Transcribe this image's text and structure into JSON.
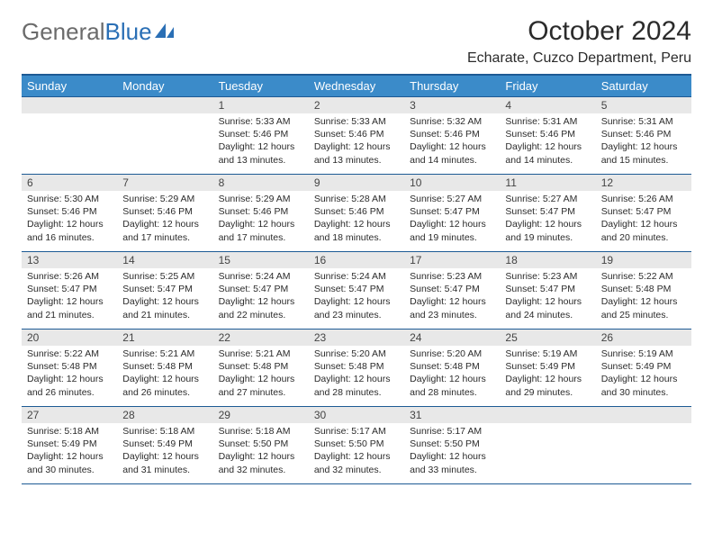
{
  "logo": {
    "part1": "General",
    "part2": "Blue"
  },
  "header": {
    "month_title": "October 2024",
    "location": "Echarate, Cuzco Department, Peru"
  },
  "colors": {
    "header_bg": "#3b8bc9",
    "header_border": "#1d5a94",
    "daynum_bg": "#e8e8e8",
    "text": "#2b2b2b",
    "logo_gray": "#6b6b6b",
    "logo_blue": "#2a6fb5"
  },
  "weekdays": [
    "Sunday",
    "Monday",
    "Tuesday",
    "Wednesday",
    "Thursday",
    "Friday",
    "Saturday"
  ],
  "weeks": [
    [
      null,
      null,
      {
        "n": "1",
        "sr": "Sunrise: 5:33 AM",
        "ss": "Sunset: 5:46 PM",
        "dl": "Daylight: 12 hours and 13 minutes."
      },
      {
        "n": "2",
        "sr": "Sunrise: 5:33 AM",
        "ss": "Sunset: 5:46 PM",
        "dl": "Daylight: 12 hours and 13 minutes."
      },
      {
        "n": "3",
        "sr": "Sunrise: 5:32 AM",
        "ss": "Sunset: 5:46 PM",
        "dl": "Daylight: 12 hours and 14 minutes."
      },
      {
        "n": "4",
        "sr": "Sunrise: 5:31 AM",
        "ss": "Sunset: 5:46 PM",
        "dl": "Daylight: 12 hours and 14 minutes."
      },
      {
        "n": "5",
        "sr": "Sunrise: 5:31 AM",
        "ss": "Sunset: 5:46 PM",
        "dl": "Daylight: 12 hours and 15 minutes."
      }
    ],
    [
      {
        "n": "6",
        "sr": "Sunrise: 5:30 AM",
        "ss": "Sunset: 5:46 PM",
        "dl": "Daylight: 12 hours and 16 minutes."
      },
      {
        "n": "7",
        "sr": "Sunrise: 5:29 AM",
        "ss": "Sunset: 5:46 PM",
        "dl": "Daylight: 12 hours and 17 minutes."
      },
      {
        "n": "8",
        "sr": "Sunrise: 5:29 AM",
        "ss": "Sunset: 5:46 PM",
        "dl": "Daylight: 12 hours and 17 minutes."
      },
      {
        "n": "9",
        "sr": "Sunrise: 5:28 AM",
        "ss": "Sunset: 5:46 PM",
        "dl": "Daylight: 12 hours and 18 minutes."
      },
      {
        "n": "10",
        "sr": "Sunrise: 5:27 AM",
        "ss": "Sunset: 5:47 PM",
        "dl": "Daylight: 12 hours and 19 minutes."
      },
      {
        "n": "11",
        "sr": "Sunrise: 5:27 AM",
        "ss": "Sunset: 5:47 PM",
        "dl": "Daylight: 12 hours and 19 minutes."
      },
      {
        "n": "12",
        "sr": "Sunrise: 5:26 AM",
        "ss": "Sunset: 5:47 PM",
        "dl": "Daylight: 12 hours and 20 minutes."
      }
    ],
    [
      {
        "n": "13",
        "sr": "Sunrise: 5:26 AM",
        "ss": "Sunset: 5:47 PM",
        "dl": "Daylight: 12 hours and 21 minutes."
      },
      {
        "n": "14",
        "sr": "Sunrise: 5:25 AM",
        "ss": "Sunset: 5:47 PM",
        "dl": "Daylight: 12 hours and 21 minutes."
      },
      {
        "n": "15",
        "sr": "Sunrise: 5:24 AM",
        "ss": "Sunset: 5:47 PM",
        "dl": "Daylight: 12 hours and 22 minutes."
      },
      {
        "n": "16",
        "sr": "Sunrise: 5:24 AM",
        "ss": "Sunset: 5:47 PM",
        "dl": "Daylight: 12 hours and 23 minutes."
      },
      {
        "n": "17",
        "sr": "Sunrise: 5:23 AM",
        "ss": "Sunset: 5:47 PM",
        "dl": "Daylight: 12 hours and 23 minutes."
      },
      {
        "n": "18",
        "sr": "Sunrise: 5:23 AM",
        "ss": "Sunset: 5:47 PM",
        "dl": "Daylight: 12 hours and 24 minutes."
      },
      {
        "n": "19",
        "sr": "Sunrise: 5:22 AM",
        "ss": "Sunset: 5:48 PM",
        "dl": "Daylight: 12 hours and 25 minutes."
      }
    ],
    [
      {
        "n": "20",
        "sr": "Sunrise: 5:22 AM",
        "ss": "Sunset: 5:48 PM",
        "dl": "Daylight: 12 hours and 26 minutes."
      },
      {
        "n": "21",
        "sr": "Sunrise: 5:21 AM",
        "ss": "Sunset: 5:48 PM",
        "dl": "Daylight: 12 hours and 26 minutes."
      },
      {
        "n": "22",
        "sr": "Sunrise: 5:21 AM",
        "ss": "Sunset: 5:48 PM",
        "dl": "Daylight: 12 hours and 27 minutes."
      },
      {
        "n": "23",
        "sr": "Sunrise: 5:20 AM",
        "ss": "Sunset: 5:48 PM",
        "dl": "Daylight: 12 hours and 28 minutes."
      },
      {
        "n": "24",
        "sr": "Sunrise: 5:20 AM",
        "ss": "Sunset: 5:48 PM",
        "dl": "Daylight: 12 hours and 28 minutes."
      },
      {
        "n": "25",
        "sr": "Sunrise: 5:19 AM",
        "ss": "Sunset: 5:49 PM",
        "dl": "Daylight: 12 hours and 29 minutes."
      },
      {
        "n": "26",
        "sr": "Sunrise: 5:19 AM",
        "ss": "Sunset: 5:49 PM",
        "dl": "Daylight: 12 hours and 30 minutes."
      }
    ],
    [
      {
        "n": "27",
        "sr": "Sunrise: 5:18 AM",
        "ss": "Sunset: 5:49 PM",
        "dl": "Daylight: 12 hours and 30 minutes."
      },
      {
        "n": "28",
        "sr": "Sunrise: 5:18 AM",
        "ss": "Sunset: 5:49 PM",
        "dl": "Daylight: 12 hours and 31 minutes."
      },
      {
        "n": "29",
        "sr": "Sunrise: 5:18 AM",
        "ss": "Sunset: 5:50 PM",
        "dl": "Daylight: 12 hours and 32 minutes."
      },
      {
        "n": "30",
        "sr": "Sunrise: 5:17 AM",
        "ss": "Sunset: 5:50 PM",
        "dl": "Daylight: 12 hours and 32 minutes."
      },
      {
        "n": "31",
        "sr": "Sunrise: 5:17 AM",
        "ss": "Sunset: 5:50 PM",
        "dl": "Daylight: 12 hours and 33 minutes."
      },
      null,
      null
    ]
  ]
}
